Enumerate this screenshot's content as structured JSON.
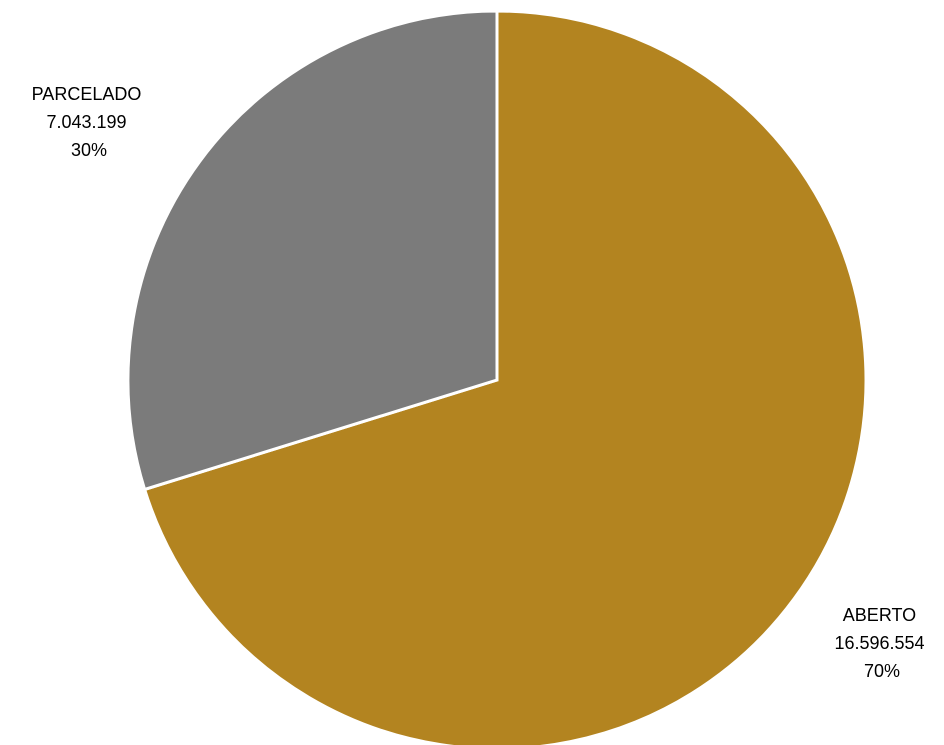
{
  "chart_data": {
    "type": "pie",
    "title": "",
    "slices": [
      {
        "label": "ABERTO",
        "value": 16596554,
        "value_label": "16.596.554",
        "percent_label": "70%",
        "color": "#b38420"
      },
      {
        "label": "PARCELADO",
        "value": 7043199,
        "value_label": "7.043.199",
        "percent_label": "30%",
        "color": "#7b7b7b"
      }
    ],
    "start_angle": "12 o'clock",
    "direction": "clockwise",
    "legend": "none",
    "data_labels": "outside, category + value + percentage"
  }
}
